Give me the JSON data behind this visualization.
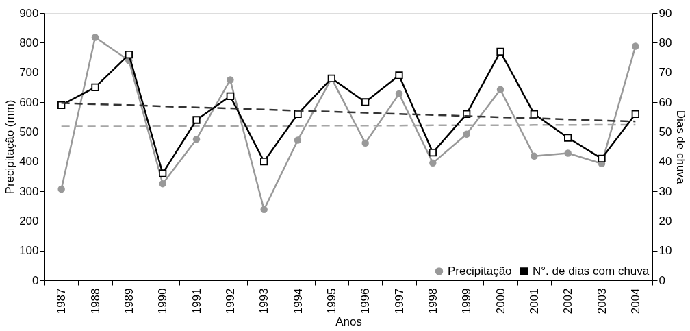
{
  "chart_data": {
    "type": "line",
    "xlabel": "Anos",
    "ylabel": "Precipitação (mm)",
    "y2label": "Dias de chuva",
    "categories": [
      "1987",
      "1988",
      "1989",
      "1990",
      "1991",
      "1992",
      "1993",
      "1994",
      "1995",
      "1996",
      "1997",
      "1998",
      "1999",
      "2000",
      "2001",
      "2002",
      "2003",
      "2004"
    ],
    "ylim": [
      0,
      900
    ],
    "yticks": [
      0,
      100,
      200,
      300,
      400,
      500,
      600,
      700,
      800,
      900
    ],
    "y2lim": [
      0,
      90
    ],
    "y2ticks": [
      0,
      10,
      20,
      30,
      40,
      50,
      60,
      70,
      80,
      90
    ],
    "grid": false,
    "legend": "bottom right",
    "series": [
      {
        "name": "Precipitação",
        "color": "#999999",
        "marker": "circle",
        "line_style": "solid",
        "values": [
          307,
          818,
          740,
          325,
          475,
          675,
          238,
          472,
          680,
          462,
          628,
          395,
          492,
          642,
          418,
          428,
          393,
          788
        ]
      },
      {
        "name": "N°. de dias com chuva",
        "color": "#000000",
        "axis": "y2",
        "marker": "square",
        "line_style": "solid",
        "values": [
          59,
          65,
          76,
          36,
          54,
          62,
          40,
          56,
          68,
          60,
          69,
          43,
          56,
          77,
          56,
          48,
          41,
          56
        ]
      },
      {
        "type": "line",
        "color": "#a6a6a6",
        "marker": "none",
        "line_style": "dashed",
        "values": [
          518,
          518,
          518,
          519,
          519,
          519,
          520,
          520,
          521,
          521,
          521,
          522,
          522,
          522,
          523,
          523,
          524,
          524
        ]
      },
      {
        "type": "line",
        "color": "#333333",
        "axis": "y2",
        "marker": "none",
        "line_style": "dashed",
        "values": [
          59.7,
          59.3,
          59.0,
          58.6,
          58.2,
          57.9,
          57.5,
          57.1,
          56.8,
          56.4,
          56.0,
          55.7,
          55.3,
          54.9,
          54.6,
          54.2,
          53.8,
          53.5
        ]
      }
    ]
  }
}
